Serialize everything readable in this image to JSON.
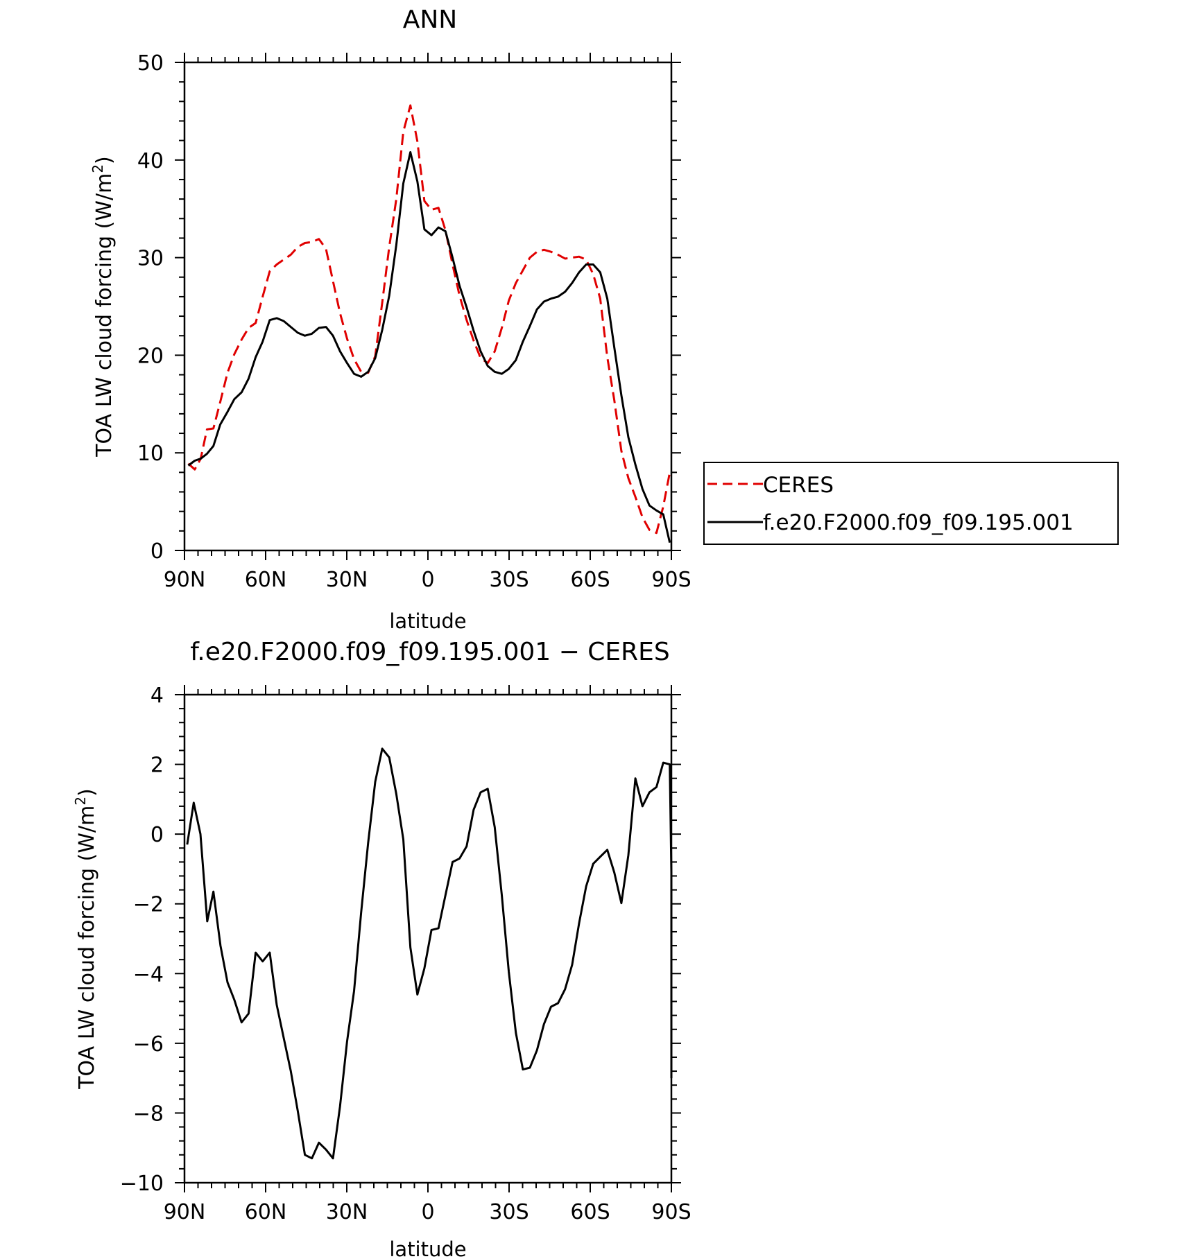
{
  "chart_data": [
    {
      "type": "line",
      "title": "ANN",
      "xlabel": "latitude",
      "ylabel": "TOA LW cloud forcing (W/m",
      "ylabel_sup": "2",
      "ylabel_close": ")",
      "xlim": [
        90,
        -90
      ],
      "ylim": [
        0,
        50
      ],
      "xticks": [
        90,
        60,
        30,
        0,
        -30,
        -60,
        -90
      ],
      "xtick_labels": [
        "90N",
        "60N",
        "30N",
        "0",
        "30S",
        "60S",
        "90S"
      ],
      "yticks": [
        0,
        10,
        20,
        30,
        40,
        50
      ],
      "ytick_labels": [
        "0",
        "10",
        "20",
        "30",
        "40",
        "50"
      ],
      "legend": "right",
      "series": [
        {
          "name": "CERES",
          "color": "#e00000",
          "style": "dashed",
          "points": [
            [
              88.6,
              8.9
            ],
            [
              86.2,
              8.3
            ],
            [
              84,
              9.4
            ],
            [
              81.7,
              12.4
            ],
            [
              79.3,
              12.5
            ],
            [
              76.8,
              15.2
            ],
            [
              74.1,
              18.2
            ],
            [
              71.6,
              20.1
            ],
            [
              68.9,
              21.6
            ],
            [
              66.3,
              22.8
            ],
            [
              63.7,
              23.3
            ],
            [
              61.1,
              26.0
            ],
            [
              58.5,
              28.6
            ],
            [
              55.9,
              29.3
            ],
            [
              53.3,
              29.8
            ],
            [
              50.7,
              30.3
            ],
            [
              48.1,
              31.1
            ],
            [
              45.5,
              31.5
            ],
            [
              42.9,
              31.6
            ],
            [
              40.3,
              31.9
            ],
            [
              37.7,
              30.9
            ],
            [
              35.1,
              27.6
            ],
            [
              32.5,
              24.3
            ],
            [
              29.9,
              21.7
            ],
            [
              27.3,
              19.6
            ],
            [
              24.7,
              18.3
            ],
            [
              22.1,
              18.2
            ],
            [
              19.5,
              19.9
            ],
            [
              16.9,
              25.4
            ],
            [
              14.3,
              31.1
            ],
            [
              11.7,
              36.0
            ],
            [
              9.1,
              42.9
            ],
            [
              6.5,
              45.6
            ],
            [
              3.9,
              41.9
            ],
            [
              1.3,
              35.8
            ],
            [
              -1.3,
              34.9
            ],
            [
              -3.9,
              35.1
            ],
            [
              -6.5,
              32.8
            ],
            [
              -9.1,
              29.3
            ],
            [
              -11.7,
              26.1
            ],
            [
              -14.3,
              23.6
            ],
            [
              -16.9,
              21.5
            ],
            [
              -19.5,
              19.7
            ],
            [
              -22.1,
              19.2
            ],
            [
              -24.7,
              20.4
            ],
            [
              -27.3,
              22.8
            ],
            [
              -29.9,
              25.6
            ],
            [
              -32.5,
              27.4
            ],
            [
              -35.1,
              28.7
            ],
            [
              -37.7,
              30.0
            ],
            [
              -40.3,
              30.6
            ],
            [
              -42.9,
              30.8
            ],
            [
              -45.5,
              30.6
            ],
            [
              -48.1,
              30.3
            ],
            [
              -50.7,
              29.9
            ],
            [
              -53.3,
              30.0
            ],
            [
              -55.9,
              30.1
            ],
            [
              -58.5,
              29.8
            ],
            [
              -61.1,
              28.3
            ],
            [
              -63.7,
              25.8
            ],
            [
              -66.3,
              19.8
            ],
            [
              -68.9,
              15.4
            ],
            [
              -71.5,
              10.2
            ],
            [
              -74.1,
              7.4
            ],
            [
              -76.7,
              5.5
            ],
            [
              -79.3,
              3.4
            ],
            [
              -81.9,
              2.1
            ],
            [
              -84.5,
              1.8
            ],
            [
              -87,
              4.5
            ],
            [
              -89.4,
              8.0
            ]
          ]
        },
        {
          "name": "f.e20.F2000.f09_f09.195.001",
          "color": "#000000",
          "style": "solid",
          "points": [
            [
              88.6,
              8.7
            ],
            [
              86.2,
              9.2
            ],
            [
              84,
              9.4
            ],
            [
              81.7,
              9.9
            ],
            [
              79.3,
              10.7
            ],
            [
              76.8,
              12.9
            ],
            [
              74.1,
              14.2
            ],
            [
              71.6,
              15.5
            ],
            [
              68.9,
              16.2
            ],
            [
              66.3,
              17.6
            ],
            [
              63.7,
              19.8
            ],
            [
              61.1,
              21.4
            ],
            [
              58.5,
              23.6
            ],
            [
              55.9,
              23.8
            ],
            [
              53.3,
              23.5
            ],
            [
              50.7,
              22.9
            ],
            [
              48.1,
              22.3
            ],
            [
              45.5,
              22.0
            ],
            [
              42.9,
              22.2
            ],
            [
              40.3,
              22.8
            ],
            [
              37.7,
              22.9
            ],
            [
              35.1,
              22.0
            ],
            [
              32.5,
              20.4
            ],
            [
              29.9,
              19.2
            ],
            [
              27.3,
              18.1
            ],
            [
              24.7,
              17.8
            ],
            [
              22.1,
              18.3
            ],
            [
              19.5,
              19.7
            ],
            [
              16.9,
              22.6
            ],
            [
              14.3,
              26.1
            ],
            [
              11.7,
              31.3
            ],
            [
              9.1,
              37.6
            ],
            [
              6.5,
              40.8
            ],
            [
              3.9,
              37.8
            ],
            [
              1.3,
              32.9
            ],
            [
              -1.3,
              32.3
            ],
            [
              -3.9,
              33.1
            ],
            [
              -6.5,
              32.7
            ],
            [
              -9.1,
              30.0
            ],
            [
              -11.7,
              27.1
            ],
            [
              -14.3,
              24.9
            ],
            [
              -16.9,
              22.5
            ],
            [
              -19.5,
              20.4
            ],
            [
              -22.1,
              18.9
            ],
            [
              -24.7,
              18.3
            ],
            [
              -27.3,
              18.1
            ],
            [
              -29.9,
              18.6
            ],
            [
              -32.5,
              19.5
            ],
            [
              -35.1,
              21.4
            ],
            [
              -37.7,
              23.0
            ],
            [
              -40.3,
              24.7
            ],
            [
              -42.9,
              25.5
            ],
            [
              -45.5,
              25.8
            ],
            [
              -48.1,
              26.0
            ],
            [
              -50.7,
              26.5
            ],
            [
              -53.3,
              27.4
            ],
            [
              -55.9,
              28.5
            ],
            [
              -58.5,
              29.3
            ],
            [
              -61.1,
              29.3
            ],
            [
              -63.7,
              28.5
            ],
            [
              -66.3,
              25.8
            ],
            [
              -68.9,
              20.8
            ],
            [
              -71.5,
              15.9
            ],
            [
              -74.1,
              11.6
            ],
            [
              -76.7,
              8.8
            ],
            [
              -79.3,
              6.3
            ],
            [
              -81.9,
              4.6
            ],
            [
              -84.5,
              4.1
            ],
            [
              -87,
              3.7
            ],
            [
              -89.4,
              0.8
            ]
          ]
        }
      ]
    },
    {
      "type": "line",
      "title": "f.e20.F2000.f09_f09.195.001 − CERES",
      "xlabel": "latitude",
      "ylabel": "TOA LW cloud forcing (W/m",
      "ylabel_sup": "2",
      "ylabel_close": ")",
      "xlim": [
        90,
        -90
      ],
      "ylim": [
        -10,
        4
      ],
      "xticks": [
        90,
        60,
        30,
        0,
        -30,
        -60,
        -90
      ],
      "xtick_labels": [
        "90N",
        "60N",
        "30N",
        "0",
        "30S",
        "60S",
        "90S"
      ],
      "yticks": [
        4,
        2,
        0,
        -2,
        -4,
        -6,
        -8,
        -10
      ],
      "ytick_labels": [
        "4",
        "2",
        "0",
        "−2",
        "−4",
        "−6",
        "−8",
        "−10"
      ],
      "series": [
        {
          "color": "#000000",
          "style": "solid",
          "points": [
            [
              89,
              -0.3
            ],
            [
              86.6,
              0.9
            ],
            [
              84.1,
              0
            ],
            [
              81.6,
              -2.5
            ],
            [
              79.3,
              -1.65
            ],
            [
              76.7,
              -3.2
            ],
            [
              74.1,
              -4.25
            ],
            [
              71.6,
              -4.75
            ],
            [
              68.9,
              -5.4
            ],
            [
              66.3,
              -5.15
            ],
            [
              63.7,
              -3.4
            ],
            [
              61.1,
              -3.65
            ],
            [
              58.5,
              -3.4
            ],
            [
              55.9,
              -4.9
            ],
            [
              53.3,
              -5.85
            ],
            [
              50.7,
              -6.8
            ],
            [
              48.1,
              -7.95
            ],
            [
              45.5,
              -9.2
            ],
            [
              42.9,
              -9.3
            ],
            [
              40.3,
              -8.85
            ],
            [
              37.7,
              -9.05
            ],
            [
              35.1,
              -9.3
            ],
            [
              32.5,
              -7.8
            ],
            [
              29.9,
              -5.95
            ],
            [
              27.3,
              -4.5
            ],
            [
              24.7,
              -2.25
            ],
            [
              22.1,
              -0.25
            ],
            [
              19.5,
              1.5
            ],
            [
              16.9,
              2.45
            ],
            [
              14.3,
              2.2
            ],
            [
              11.7,
              1.15
            ],
            [
              9.1,
              -0.15
            ],
            [
              6.5,
              -3.25
            ],
            [
              3.9,
              -4.6
            ],
            [
              1.3,
              -3.85
            ],
            [
              -1.3,
              -2.75
            ],
            [
              -3.9,
              -2.7
            ],
            [
              -6.5,
              -1.75
            ],
            [
              -9.1,
              -0.8
            ],
            [
              -11.7,
              -0.7
            ],
            [
              -14.3,
              -0.35
            ],
            [
              -16.9,
              0.7
            ],
            [
              -19.5,
              1.2
            ],
            [
              -22.1,
              1.3
            ],
            [
              -24.7,
              0.2
            ],
            [
              -27.3,
              -1.75
            ],
            [
              -29.9,
              -3.95
            ],
            [
              -32.5,
              -5.7
            ],
            [
              -35.1,
              -6.75
            ],
            [
              -37.7,
              -6.7
            ],
            [
              -40.3,
              -6.2
            ],
            [
              -42.9,
              -5.45
            ],
            [
              -45.5,
              -4.95
            ],
            [
              -48.1,
              -4.85
            ],
            [
              -50.7,
              -4.45
            ],
            [
              -53.3,
              -3.75
            ],
            [
              -55.9,
              -2.55
            ],
            [
              -58.5,
              -1.5
            ],
            [
              -61.1,
              -0.85
            ],
            [
              -63.7,
              -0.65
            ],
            [
              -66.3,
              -0.45
            ],
            [
              -68.9,
              -1.1
            ],
            [
              -71.5,
              -1.98
            ],
            [
              -74.1,
              -0.6
            ],
            [
              -76.7,
              1.6
            ],
            [
              -79.3,
              0.8
            ],
            [
              -81.9,
              1.2
            ],
            [
              -84.5,
              1.35
            ],
            [
              -87,
              2.05
            ],
            [
              -89.4,
              2.0
            ],
            [
              -91.9,
              -1.1
            ],
            [
              -94.5,
              -7.0
            ]
          ]
        }
      ]
    }
  ]
}
